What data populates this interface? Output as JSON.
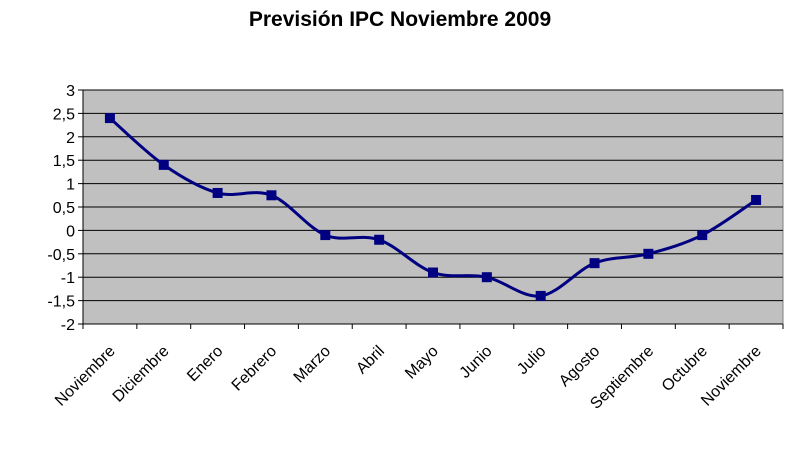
{
  "chart_data": {
    "type": "line",
    "title": "Previsión IPC Noviembre 2009",
    "categories": [
      "Noviembre",
      "Diciembre",
      "Enero",
      "Febrero",
      "Marzo",
      "Abril",
      "Mayo",
      "Junio",
      "Julio",
      "Agosto",
      "Septiembre",
      "Octubre",
      "Noviembre"
    ],
    "series": [
      {
        "values": [
          2.4,
          1.4,
          0.8,
          0.75,
          -0.1,
          -0.2,
          -0.9,
          -1.0,
          -1.4,
          -0.7,
          -0.5,
          -0.1,
          0.65
        ]
      }
    ],
    "y_ticks": [
      "3",
      "2,5",
      "2",
      "1,5",
      "1",
      "0,5",
      "0",
      "-0,5",
      "-1",
      "-1,5",
      "-2"
    ],
    "ylim": [
      -2,
      3
    ],
    "grid": true,
    "legend": "none",
    "colors": {
      "line": "#000080",
      "plot_background": "#c0c0c0",
      "gridline": "#000000"
    }
  }
}
